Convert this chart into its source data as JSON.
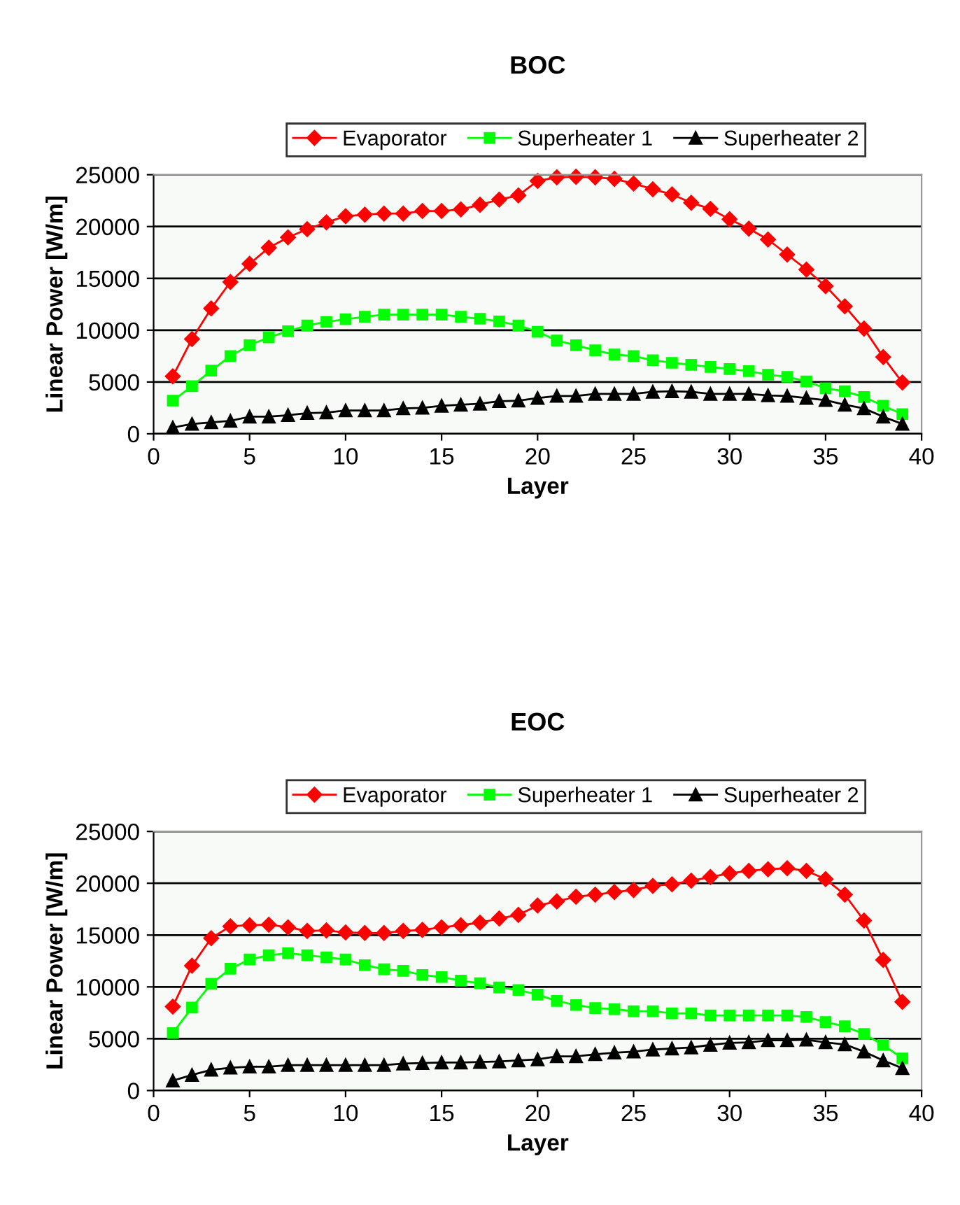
{
  "chart_data": [
    {
      "type": "line",
      "title": "BOC",
      "xlabel": "Layer",
      "ylabel": "Linear Power [W/m]",
      "xlim": [
        0,
        40
      ],
      "xticks": [
        0,
        5,
        10,
        15,
        20,
        25,
        30,
        35,
        40
      ],
      "ylim": [
        0,
        25000
      ],
      "yticks": [
        0,
        5000,
        10000,
        15000,
        20000,
        25000
      ],
      "grid": "y",
      "legend": "top",
      "x": [
        1,
        2,
        3,
        4,
        5,
        6,
        7,
        8,
        9,
        10,
        11,
        12,
        13,
        14,
        15,
        16,
        17,
        18,
        19,
        20,
        21,
        22,
        23,
        24,
        25,
        26,
        27,
        28,
        29,
        30,
        31,
        32,
        33,
        34,
        35,
        36,
        37,
        38,
        39
      ],
      "series": [
        {
          "name": "Evaporator",
          "color": "#ff0000",
          "marker": "diamond",
          "values": [
            5550,
            9150,
            12100,
            14650,
            16400,
            17950,
            18950,
            19750,
            20400,
            21000,
            21150,
            21250,
            21250,
            21500,
            21500,
            21650,
            22100,
            22600,
            23000,
            24400,
            24750,
            24800,
            24750,
            24600,
            24150,
            23600,
            23100,
            22300,
            21700,
            20700,
            19800,
            18750,
            17300,
            15850,
            14250,
            12300,
            10150,
            7400,
            4950
          ]
        },
        {
          "name": "Superheater 1",
          "color": "#00ff00",
          "marker": "square",
          "values": [
            3200,
            4600,
            6100,
            7500,
            8550,
            9300,
            9900,
            10450,
            10800,
            11050,
            11300,
            11500,
            11500,
            11500,
            11500,
            11300,
            11100,
            10850,
            10450,
            9850,
            9000,
            8550,
            8050,
            7650,
            7500,
            7100,
            6850,
            6650,
            6450,
            6250,
            6050,
            5700,
            5500,
            5050,
            4400,
            4100,
            3550,
            2700,
            1900
          ]
        },
        {
          "name": "Superheater 2",
          "color": "#000000",
          "marker": "triangle",
          "values": [
            600,
            950,
            1100,
            1250,
            1650,
            1650,
            1800,
            2000,
            2050,
            2250,
            2250,
            2250,
            2450,
            2500,
            2700,
            2800,
            2900,
            3150,
            3200,
            3450,
            3650,
            3650,
            3850,
            3850,
            3850,
            4050,
            4100,
            4050,
            3850,
            3850,
            3850,
            3700,
            3650,
            3450,
            3250,
            2800,
            2450,
            1650,
            950
          ]
        }
      ]
    },
    {
      "type": "line",
      "title": "EOC",
      "xlabel": "Layer",
      "ylabel": "Linear Power [W/m]",
      "xlim": [
        0,
        40
      ],
      "xticks": [
        0,
        5,
        10,
        15,
        20,
        25,
        30,
        35,
        40
      ],
      "ylim": [
        0,
        25000
      ],
      "yticks": [
        0,
        5000,
        10000,
        15000,
        20000,
        25000
      ],
      "grid": "y",
      "legend": "top",
      "x": [
        1,
        2,
        3,
        4,
        5,
        6,
        7,
        8,
        9,
        10,
        11,
        12,
        13,
        14,
        15,
        16,
        17,
        18,
        19,
        20,
        21,
        22,
        23,
        24,
        25,
        26,
        27,
        28,
        29,
        30,
        31,
        32,
        33,
        34,
        35,
        36,
        37,
        38,
        39
      ],
      "series": [
        {
          "name": "Evaporator",
          "color": "#ff0000",
          "marker": "diamond",
          "values": [
            8100,
            12050,
            14700,
            15850,
            15950,
            16000,
            15750,
            15400,
            15450,
            15250,
            15200,
            15200,
            15400,
            15500,
            15750,
            15950,
            16200,
            16600,
            16950,
            17850,
            18250,
            18700,
            18900,
            19150,
            19350,
            19750,
            19900,
            20250,
            20600,
            20950,
            21200,
            21350,
            21450,
            21200,
            20400,
            18900,
            16400,
            12600,
            8550
          ]
        },
        {
          "name": "Superheater 1",
          "color": "#00ff00",
          "marker": "square",
          "values": [
            5550,
            8000,
            10300,
            11750,
            12650,
            13050,
            13250,
            13050,
            12850,
            12650,
            12100,
            11700,
            11550,
            11150,
            10950,
            10600,
            10350,
            9950,
            9700,
            9250,
            8650,
            8250,
            7950,
            7850,
            7650,
            7650,
            7450,
            7450,
            7250,
            7250,
            7250,
            7250,
            7250,
            7100,
            6600,
            6200,
            5450,
            4400,
            3100
          ]
        },
        {
          "name": "Superheater 2",
          "color": "#000000",
          "marker": "triangle",
          "values": [
            950,
            1500,
            2000,
            2200,
            2300,
            2300,
            2450,
            2450,
            2450,
            2450,
            2450,
            2450,
            2600,
            2650,
            2700,
            2700,
            2750,
            2800,
            2900,
            3000,
            3300,
            3300,
            3500,
            3650,
            3750,
            3950,
            4050,
            4150,
            4400,
            4600,
            4650,
            4850,
            4850,
            4900,
            4650,
            4450,
            3750,
            2900,
            2150
          ]
        }
      ]
    }
  ]
}
